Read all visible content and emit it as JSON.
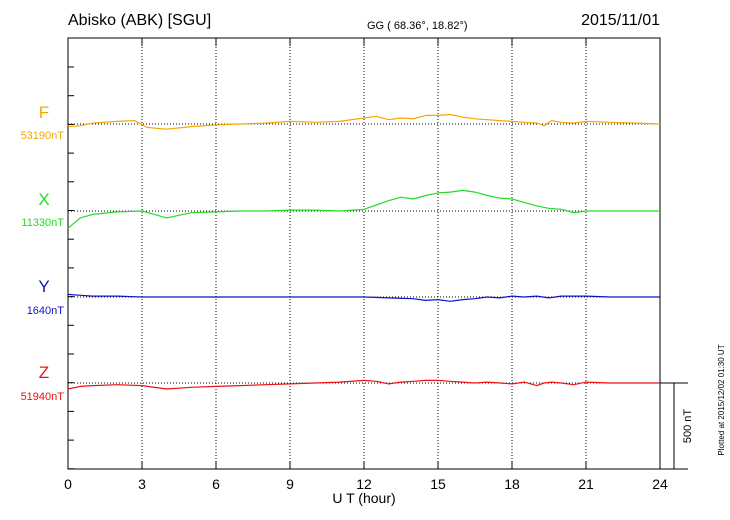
{
  "header": {
    "station": "Abisko (ABK)  [SGU]",
    "coords": "GG ( 68.36°,  18.82°)",
    "date": "2015/11/01"
  },
  "footer": {
    "plotted": "Plotted at 2015/12/02 01:30 UT"
  },
  "chart_data": {
    "type": "line",
    "xlabel": "U T (hour)",
    "xlim": [
      0,
      24
    ],
    "xticks": [
      "0",
      "3",
      "6",
      "9",
      "12",
      "15",
      "18",
      "21",
      "24"
    ],
    "grid": "dotted vertical lines every 3 h; dotted baseline for each component",
    "scale_bar": {
      "label": "500 nT",
      "value": 500
    },
    "series": [
      {
        "name": "F",
        "baseline_label": "53190nT",
        "baseline": 53190,
        "color": "#f5a800",
        "points": [
          [
            0,
            53175
          ],
          [
            0.5,
            53180
          ],
          [
            1,
            53195
          ],
          [
            2,
            53205
          ],
          [
            2.7,
            53210
          ],
          [
            3.2,
            53170
          ],
          [
            4,
            53160
          ],
          [
            5,
            53175
          ],
          [
            6,
            53185
          ],
          [
            7,
            53190
          ],
          [
            8,
            53195
          ],
          [
            9,
            53205
          ],
          [
            10,
            53200
          ],
          [
            11,
            53205
          ],
          [
            12,
            53225
          ],
          [
            12.5,
            53235
          ],
          [
            13,
            53215
          ],
          [
            13.5,
            53225
          ],
          [
            14,
            53220
          ],
          [
            14.5,
            53240
          ],
          [
            15,
            53240
          ],
          [
            15.5,
            53245
          ],
          [
            16,
            53230
          ],
          [
            16.5,
            53220
          ],
          [
            17,
            53215
          ],
          [
            17.5,
            53210
          ],
          [
            18,
            53205
          ],
          [
            18.5,
            53200
          ],
          [
            19,
            53195
          ],
          [
            19.3,
            53180
          ],
          [
            19.6,
            53210
          ],
          [
            20,
            53200
          ],
          [
            20.5,
            53195
          ],
          [
            21,
            53205
          ],
          [
            22,
            53200
          ],
          [
            23,
            53195
          ],
          [
            24,
            53190
          ]
        ]
      },
      {
        "name": "X",
        "baseline_label": "11330nT",
        "baseline": 11330,
        "color": "#22dd22",
        "points": [
          [
            0,
            11230
          ],
          [
            0.5,
            11290
          ],
          [
            1,
            11310
          ],
          [
            2,
            11325
          ],
          [
            3,
            11330
          ],
          [
            3.5,
            11310
          ],
          [
            4,
            11290
          ],
          [
            4.5,
            11305
          ],
          [
            5,
            11320
          ],
          [
            6,
            11325
          ],
          [
            7,
            11330
          ],
          [
            8,
            11330
          ],
          [
            9,
            11335
          ],
          [
            10,
            11335
          ],
          [
            11,
            11330
          ],
          [
            12,
            11340
          ],
          [
            12.5,
            11365
          ],
          [
            13,
            11390
          ],
          [
            13.5,
            11410
          ],
          [
            14,
            11400
          ],
          [
            14.5,
            11420
          ],
          [
            15,
            11435
          ],
          [
            15.5,
            11440
          ],
          [
            16,
            11450
          ],
          [
            16.5,
            11440
          ],
          [
            17,
            11420
          ],
          [
            17.5,
            11405
          ],
          [
            18,
            11400
          ],
          [
            18.5,
            11380
          ],
          [
            19,
            11360
          ],
          [
            19.5,
            11345
          ],
          [
            20,
            11340
          ],
          [
            20.5,
            11320
          ],
          [
            21,
            11330
          ],
          [
            22,
            11330
          ],
          [
            23,
            11330
          ],
          [
            24,
            11330
          ]
        ]
      },
      {
        "name": "Y",
        "baseline_label": "1640nT",
        "baseline": 1640,
        "color": "#1111cc",
        "points": [
          [
            0,
            1655
          ],
          [
            0.5,
            1650
          ],
          [
            1,
            1645
          ],
          [
            2,
            1645
          ],
          [
            3,
            1640
          ],
          [
            4,
            1640
          ],
          [
            5,
            1640
          ],
          [
            6,
            1640
          ],
          [
            7,
            1640
          ],
          [
            8,
            1640
          ],
          [
            9,
            1640
          ],
          [
            10,
            1640
          ],
          [
            11,
            1640
          ],
          [
            12,
            1640
          ],
          [
            13,
            1635
          ],
          [
            14,
            1630
          ],
          [
            14.5,
            1620
          ],
          [
            15,
            1625
          ],
          [
            15.5,
            1615
          ],
          [
            16,
            1625
          ],
          [
            16.5,
            1630
          ],
          [
            17,
            1640
          ],
          [
            17.5,
            1635
          ],
          [
            18,
            1645
          ],
          [
            18.5,
            1640
          ],
          [
            19,
            1645
          ],
          [
            19.5,
            1635
          ],
          [
            20,
            1645
          ],
          [
            21,
            1645
          ],
          [
            22,
            1640
          ],
          [
            23,
            1640
          ],
          [
            24,
            1640
          ]
        ]
      },
      {
        "name": "Z",
        "baseline_label": "51940nT",
        "baseline": 51940,
        "color": "#ee1111",
        "points": [
          [
            0,
            51905
          ],
          [
            0.5,
            51920
          ],
          [
            1,
            51925
          ],
          [
            2,
            51930
          ],
          [
            3,
            51925
          ],
          [
            4,
            51905
          ],
          [
            5,
            51915
          ],
          [
            6,
            51920
          ],
          [
            7,
            51925
          ],
          [
            8,
            51930
          ],
          [
            9,
            51935
          ],
          [
            10,
            51940
          ],
          [
            11,
            51945
          ],
          [
            12,
            51955
          ],
          [
            12.5,
            51950
          ],
          [
            13,
            51935
          ],
          [
            13.5,
            51945
          ],
          [
            14,
            51950
          ],
          [
            14.5,
            51955
          ],
          [
            15,
            51955
          ],
          [
            15.5,
            51950
          ],
          [
            16,
            51945
          ],
          [
            16.5,
            51940
          ],
          [
            17,
            51945
          ],
          [
            17.5,
            51940
          ],
          [
            18,
            51935
          ],
          [
            18.5,
            51945
          ],
          [
            19,
            51925
          ],
          [
            19.3,
            51940
          ],
          [
            19.6,
            51945
          ],
          [
            20,
            51940
          ],
          [
            20.5,
            51930
          ],
          [
            21,
            51945
          ],
          [
            22,
            51940
          ],
          [
            23,
            51940
          ],
          [
            24,
            51940
          ]
        ]
      }
    ]
  }
}
